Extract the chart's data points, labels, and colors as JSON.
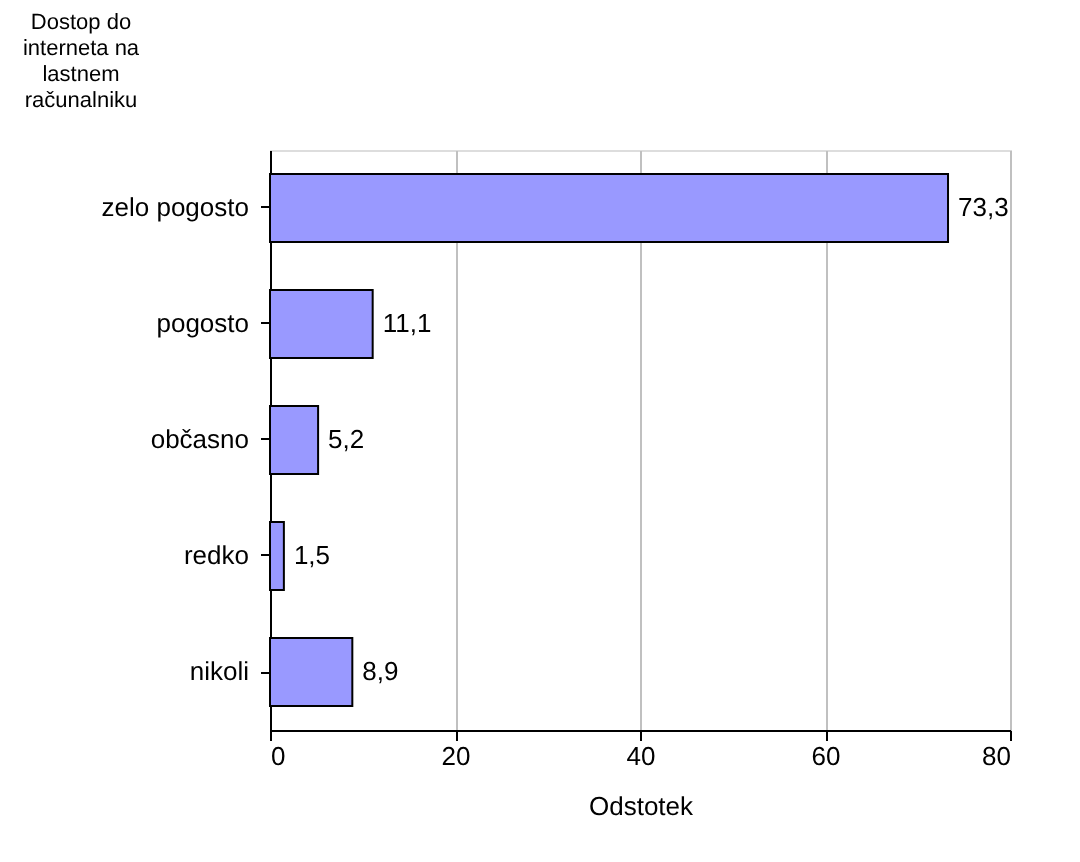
{
  "chart_data": {
    "type": "bar",
    "orientation": "horizontal",
    "ylabel": "Dostop do interneta na lastnem računalniku",
    "xlabel": "Odstotek",
    "categories": [
      "zelo pogosto",
      "pogosto",
      "občasno",
      "redko",
      "nikoli"
    ],
    "values": [
      73.3,
      11.1,
      5.2,
      1.5,
      8.9
    ],
    "value_labels": [
      "73,3",
      "11,1",
      "5,2",
      "1,5",
      "8,9"
    ],
    "color": "#9999ff",
    "xlim": [
      0,
      80
    ],
    "xticks": [
      0,
      20,
      40,
      60,
      80
    ],
    "grid": "x"
  }
}
